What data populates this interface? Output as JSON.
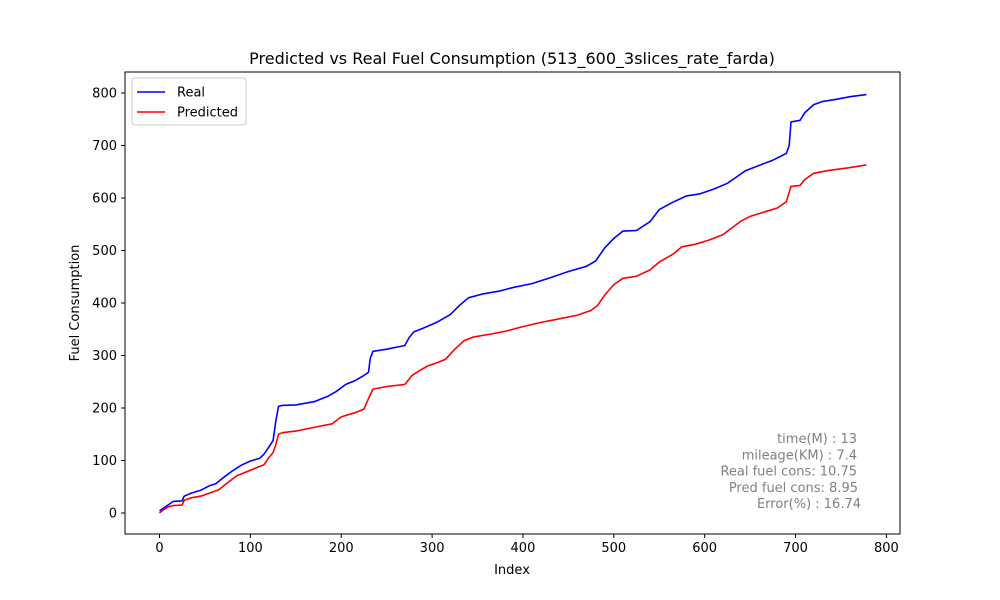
{
  "chart_data": {
    "type": "line",
    "title": "Predicted vs Real Fuel Consumption (513_600_3slices_rate_farda)",
    "xlabel": "Index",
    "ylabel": "Fuel Consumption",
    "xlim": [
      -38,
      815
    ],
    "ylim": [
      -40,
      840
    ],
    "xticks": [
      0,
      100,
      200,
      300,
      400,
      500,
      600,
      700,
      800
    ],
    "yticks": [
      0,
      100,
      200,
      300,
      400,
      500,
      600,
      700,
      800
    ],
    "grid": false,
    "legend_position": "top-left",
    "series": [
      {
        "name": "Real",
        "color": "#0000ff",
        "points": [
          [
            0,
            4
          ],
          [
            5,
            10
          ],
          [
            10,
            16
          ],
          [
            15,
            22
          ],
          [
            25,
            23
          ],
          [
            27,
            32
          ],
          [
            35,
            38
          ],
          [
            45,
            43
          ],
          [
            55,
            52
          ],
          [
            62,
            56
          ],
          [
            70,
            67
          ],
          [
            80,
            80
          ],
          [
            90,
            91
          ],
          [
            100,
            99
          ],
          [
            110,
            104
          ],
          [
            115,
            112
          ],
          [
            120,
            125
          ],
          [
            125,
            138
          ],
          [
            128,
            175
          ],
          [
            131,
            203
          ],
          [
            135,
            205
          ],
          [
            150,
            206
          ],
          [
            170,
            212
          ],
          [
            185,
            222
          ],
          [
            195,
            232
          ],
          [
            205,
            245
          ],
          [
            215,
            252
          ],
          [
            225,
            262
          ],
          [
            230,
            268
          ],
          [
            232,
            295
          ],
          [
            235,
            308
          ],
          [
            250,
            312
          ],
          [
            270,
            319
          ],
          [
            275,
            335
          ],
          [
            280,
            345
          ],
          [
            290,
            352
          ],
          [
            305,
            363
          ],
          [
            320,
            378
          ],
          [
            330,
            395
          ],
          [
            340,
            410
          ],
          [
            355,
            417
          ],
          [
            375,
            423
          ],
          [
            390,
            430
          ],
          [
            410,
            437
          ],
          [
            430,
            448
          ],
          [
            450,
            460
          ],
          [
            470,
            470
          ],
          [
            480,
            480
          ],
          [
            490,
            505
          ],
          [
            500,
            523
          ],
          [
            510,
            537
          ],
          [
            525,
            538
          ],
          [
            540,
            555
          ],
          [
            550,
            578
          ],
          [
            565,
            592
          ],
          [
            580,
            604
          ],
          [
            595,
            608
          ],
          [
            610,
            617
          ],
          [
            625,
            628
          ],
          [
            635,
            640
          ],
          [
            645,
            652
          ],
          [
            660,
            662
          ],
          [
            675,
            672
          ],
          [
            690,
            685
          ],
          [
            693,
            700
          ],
          [
            695,
            745
          ],
          [
            705,
            748
          ],
          [
            710,
            762
          ],
          [
            720,
            778
          ],
          [
            730,
            784
          ],
          [
            745,
            788
          ],
          [
            760,
            793
          ],
          [
            778,
            797
          ]
        ]
      },
      {
        "name": "Predicted",
        "color": "#ff0000",
        "points": [
          [
            0,
            0
          ],
          [
            5,
            7
          ],
          [
            10,
            12
          ],
          [
            15,
            14
          ],
          [
            25,
            15
          ],
          [
            27,
            24
          ],
          [
            35,
            29
          ],
          [
            45,
            32
          ],
          [
            55,
            38
          ],
          [
            65,
            44
          ],
          [
            75,
            58
          ],
          [
            85,
            71
          ],
          [
            95,
            78
          ],
          [
            105,
            85
          ],
          [
            115,
            92
          ],
          [
            120,
            105
          ],
          [
            125,
            115
          ],
          [
            128,
            130
          ],
          [
            131,
            150
          ],
          [
            135,
            153
          ],
          [
            150,
            156
          ],
          [
            170,
            163
          ],
          [
            190,
            170
          ],
          [
            200,
            183
          ],
          [
            215,
            191
          ],
          [
            225,
            198
          ],
          [
            230,
            218
          ],
          [
            235,
            236
          ],
          [
            250,
            241
          ],
          [
            270,
            245
          ],
          [
            278,
            262
          ],
          [
            285,
            270
          ],
          [
            295,
            280
          ],
          [
            305,
            286
          ],
          [
            315,
            293
          ],
          [
            325,
            312
          ],
          [
            335,
            328
          ],
          [
            345,
            335
          ],
          [
            365,
            341
          ],
          [
            380,
            346
          ],
          [
            400,
            355
          ],
          [
            420,
            363
          ],
          [
            440,
            370
          ],
          [
            460,
            377
          ],
          [
            475,
            386
          ],
          [
            482,
            395
          ],
          [
            490,
            415
          ],
          [
            500,
            435
          ],
          [
            510,
            447
          ],
          [
            525,
            451
          ],
          [
            540,
            463
          ],
          [
            550,
            478
          ],
          [
            565,
            493
          ],
          [
            575,
            507
          ],
          [
            590,
            512
          ],
          [
            605,
            520
          ],
          [
            620,
            530
          ],
          [
            630,
            543
          ],
          [
            640,
            556
          ],
          [
            650,
            565
          ],
          [
            665,
            573
          ],
          [
            680,
            581
          ],
          [
            690,
            593
          ],
          [
            695,
            622
          ],
          [
            705,
            624
          ],
          [
            710,
            635
          ],
          [
            720,
            647
          ],
          [
            735,
            652
          ],
          [
            760,
            658
          ],
          [
            778,
            663
          ]
        ]
      }
    ],
    "annotation_lines": [
      "time(M) : 13",
      "mileage(KM) : 7.4",
      "Real fuel cons: 10.75",
      "Pred fuel cons: 8.95",
      "Error(%) : 16.74"
    ],
    "annotation_color": "#808080"
  }
}
